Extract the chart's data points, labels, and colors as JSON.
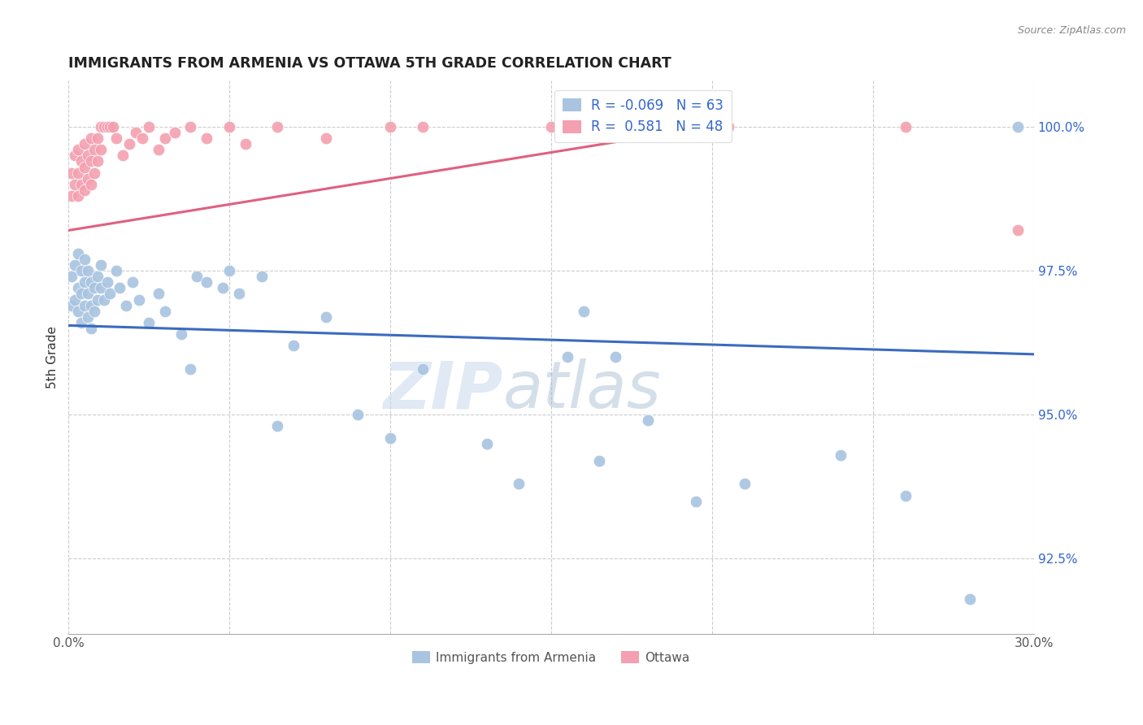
{
  "title": "IMMIGRANTS FROM ARMENIA VS OTTAWA 5TH GRADE CORRELATION CHART",
  "source": "Source: ZipAtlas.com",
  "ylabel": "5th Grade",
  "x_min": 0.0,
  "x_max": 0.3,
  "y_min": 91.2,
  "y_max": 100.8,
  "x_tick_positions": [
    0.0,
    0.05,
    0.1,
    0.15,
    0.2,
    0.25,
    0.3
  ],
  "x_tick_labels": [
    "0.0%",
    "",
    "",
    "",
    "",
    "",
    "30.0%"
  ],
  "y_tick_positions": [
    92.5,
    95.0,
    97.5,
    100.0
  ],
  "y_tick_labels": [
    "92.5%",
    "95.0%",
    "97.5%",
    "100.0%"
  ],
  "legend_items": [
    "Immigrants from Armenia",
    "Ottawa"
  ],
  "blue_color": "#a8c4e0",
  "pink_color": "#f4a0b0",
  "blue_line_color": "#3b6bbf",
  "pink_line_color": "#e06080",
  "watermark_zip": "ZIP",
  "watermark_atlas": "atlas",
  "blue_trend_x0": 0.0,
  "blue_trend_y0": 96.55,
  "blue_trend_x1": 0.3,
  "blue_trend_y1": 96.05,
  "pink_trend_x0": 0.0,
  "pink_trend_y0": 98.2,
  "pink_trend_x1": 0.205,
  "pink_trend_y1": 100.05,
  "blue_points_x": [
    0.001,
    0.001,
    0.002,
    0.002,
    0.003,
    0.003,
    0.003,
    0.004,
    0.004,
    0.004,
    0.005,
    0.005,
    0.005,
    0.006,
    0.006,
    0.006,
    0.007,
    0.007,
    0.007,
    0.008,
    0.008,
    0.009,
    0.009,
    0.01,
    0.01,
    0.011,
    0.012,
    0.013,
    0.015,
    0.016,
    0.018,
    0.02,
    0.022,
    0.025,
    0.028,
    0.03,
    0.035,
    0.038,
    0.04,
    0.043,
    0.048,
    0.05,
    0.053,
    0.06,
    0.065,
    0.07,
    0.08,
    0.09,
    0.1,
    0.11,
    0.13,
    0.14,
    0.155,
    0.16,
    0.165,
    0.17,
    0.18,
    0.195,
    0.21,
    0.24,
    0.26,
    0.28,
    0.295
  ],
  "blue_points_y": [
    97.4,
    96.9,
    97.6,
    97.0,
    97.8,
    97.2,
    96.8,
    97.5,
    97.1,
    96.6,
    97.3,
    96.9,
    97.7,
    97.5,
    97.1,
    96.7,
    97.3,
    96.9,
    96.5,
    97.2,
    96.8,
    97.4,
    97.0,
    97.6,
    97.2,
    97.0,
    97.3,
    97.1,
    97.5,
    97.2,
    96.9,
    97.3,
    97.0,
    96.6,
    97.1,
    96.8,
    96.4,
    95.8,
    97.4,
    97.3,
    97.2,
    97.5,
    97.1,
    97.4,
    94.8,
    96.2,
    96.7,
    95.0,
    94.6,
    95.8,
    94.5,
    93.8,
    96.0,
    96.8,
    94.2,
    96.0,
    94.9,
    93.5,
    93.8,
    94.3,
    93.6,
    91.8,
    100.0
  ],
  "pink_points_x": [
    0.001,
    0.001,
    0.002,
    0.002,
    0.003,
    0.003,
    0.003,
    0.004,
    0.004,
    0.005,
    0.005,
    0.005,
    0.006,
    0.006,
    0.007,
    0.007,
    0.007,
    0.008,
    0.008,
    0.009,
    0.009,
    0.01,
    0.01,
    0.011,
    0.012,
    0.013,
    0.014,
    0.015,
    0.017,
    0.019,
    0.021,
    0.023,
    0.025,
    0.028,
    0.03,
    0.033,
    0.038,
    0.043,
    0.05,
    0.055,
    0.065,
    0.08,
    0.1,
    0.11,
    0.15,
    0.205,
    0.26,
    0.295
  ],
  "pink_points_y": [
    99.2,
    98.8,
    99.5,
    99.0,
    99.6,
    99.2,
    98.8,
    99.4,
    99.0,
    99.7,
    99.3,
    98.9,
    99.5,
    99.1,
    99.8,
    99.4,
    99.0,
    99.6,
    99.2,
    99.8,
    99.4,
    100.0,
    99.6,
    100.0,
    100.0,
    100.0,
    100.0,
    99.8,
    99.5,
    99.7,
    99.9,
    99.8,
    100.0,
    99.6,
    99.8,
    99.9,
    100.0,
    99.8,
    100.0,
    99.7,
    100.0,
    99.8,
    100.0,
    100.0,
    100.0,
    100.0,
    100.0,
    98.2
  ]
}
